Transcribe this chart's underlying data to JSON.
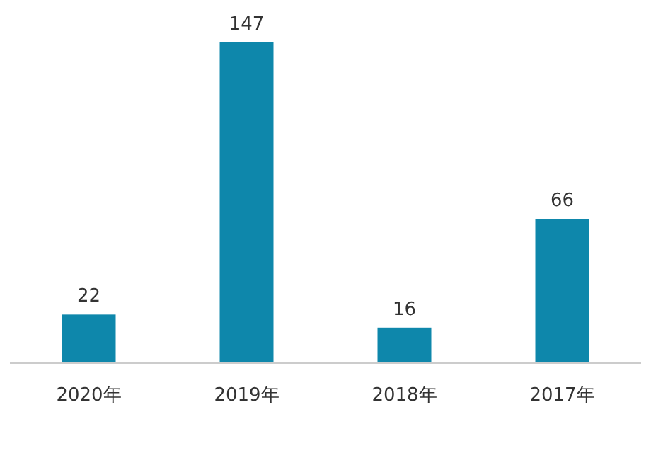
{
  "chart_data": {
    "type": "bar",
    "categories": [
      "2020年",
      "2019年",
      "2018年",
      "2017年"
    ],
    "values": [
      22,
      147,
      16,
      66
    ],
    "color": "#0e87ab",
    "data_labels": true
  }
}
